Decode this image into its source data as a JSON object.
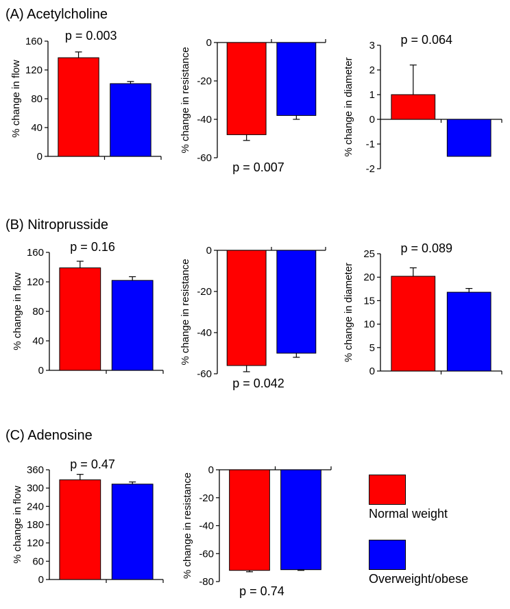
{
  "sections": [
    {
      "title": "(A) Acetylcholine"
    },
    {
      "title": "(B) Nitroprusside"
    },
    {
      "title": "(C) Adenosine"
    }
  ],
  "legend": {
    "items": [
      {
        "label": "Normal weight",
        "color": "#ff0000"
      },
      {
        "label": "Overweight/obese",
        "color": "#0000ff"
      }
    ]
  },
  "colors": {
    "normal": "#ff0000",
    "overweight": "#0000ff"
  },
  "chart_data": [
    {
      "id": "A1",
      "type": "bar",
      "section": "(A) Acetylcholine",
      "ylabel": "% change in flow",
      "ylim": [
        0,
        160
      ],
      "yticks": [
        0,
        40,
        80,
        120,
        160
      ],
      "tick_labels": [
        "0",
        "40",
        "80",
        "120",
        "160"
      ],
      "values": [
        137,
        101
      ],
      "errors": [
        8,
        3
      ],
      "pvalue": "p  = 0.003",
      "p_pos": "top"
    },
    {
      "id": "A2",
      "type": "bar",
      "section": "(A) Acetylcholine",
      "ylabel": "% change in resistance",
      "ylim": [
        -60,
        0
      ],
      "yticks": [
        0,
        -20,
        -40,
        -60
      ],
      "tick_labels": [
        "0",
        "-20",
        "-40",
        "-60"
      ],
      "values": [
        -48,
        -38
      ],
      "errors": [
        3,
        2
      ],
      "pvalue": "p  = 0.007",
      "p_pos": "bottom"
    },
    {
      "id": "A3",
      "type": "bar",
      "section": "(A) Acetylcholine",
      "ylabel": "% change in diameter",
      "ylim": [
        -2,
        3
      ],
      "yticks": [
        3,
        2,
        1,
        0,
        -1,
        -2
      ],
      "tick_labels": [
        "3",
        "2",
        "1",
        "0",
        "-1",
        "-2"
      ],
      "values": [
        1.0,
        -1.5
      ],
      "errors": [
        1.2,
        0
      ],
      "pvalue": "p  = 0.064",
      "p_pos": "top"
    },
    {
      "id": "B1",
      "type": "bar",
      "section": "(B) Nitroprusside",
      "ylabel": "% change in flow",
      "ylim": [
        0,
        160
      ],
      "yticks": [
        0,
        40,
        80,
        120,
        160
      ],
      "tick_labels": [
        "0",
        "40",
        "80",
        "120",
        "160"
      ],
      "values": [
        139,
        122
      ],
      "errors": [
        9,
        5
      ],
      "pvalue": "p  = 0.16",
      "p_pos": "top"
    },
    {
      "id": "B2",
      "type": "bar",
      "section": "(B) Nitroprusside",
      "ylabel": "% change in resistance",
      "ylim": [
        -60,
        0
      ],
      "yticks": [
        0,
        -20,
        -40,
        -60
      ],
      "tick_labels": [
        "0",
        "-20",
        "-40",
        "-60"
      ],
      "values": [
        -56,
        -50
      ],
      "errors": [
        3,
        2
      ],
      "pvalue": "p  = 0.042",
      "p_pos": "bottom"
    },
    {
      "id": "B3",
      "type": "bar",
      "section": "(B) Nitroprusside",
      "ylabel": "% change in diameter",
      "ylim": [
        0,
        25
      ],
      "yticks": [
        0,
        5,
        10,
        15,
        20,
        25
      ],
      "tick_labels": [
        "0",
        "5",
        "10",
        "15",
        "20",
        "25"
      ],
      "values": [
        20.2,
        16.8
      ],
      "errors": [
        1.8,
        0.8
      ],
      "pvalue": "p  = 0.089",
      "p_pos": "top"
    },
    {
      "id": "C1",
      "type": "bar",
      "section": "(C) Adenosine",
      "ylabel": "% change in flow",
      "ylim": [
        0,
        360
      ],
      "yticks": [
        0,
        60,
        120,
        180,
        240,
        300,
        360
      ],
      "tick_labels": [
        "0",
        "60",
        "120",
        "180",
        "240",
        "300",
        "360"
      ],
      "values": [
        327,
        313
      ],
      "errors": [
        18,
        7
      ],
      "pvalue": "p  = 0.47",
      "p_pos": "top"
    },
    {
      "id": "C2",
      "type": "bar",
      "section": "(C) Adenosine",
      "ylabel": "% change in resistance",
      "ylim": [
        -80,
        0
      ],
      "yticks": [
        0,
        -20,
        -40,
        -60,
        -80
      ],
      "tick_labels": [
        "0",
        "-20",
        "-40",
        "-60",
        "-80"
      ],
      "values": [
        -72,
        -71.5
      ],
      "errors": [
        1,
        0.5
      ],
      "pvalue": "p  = 0.74",
      "p_pos": "bottom"
    }
  ]
}
